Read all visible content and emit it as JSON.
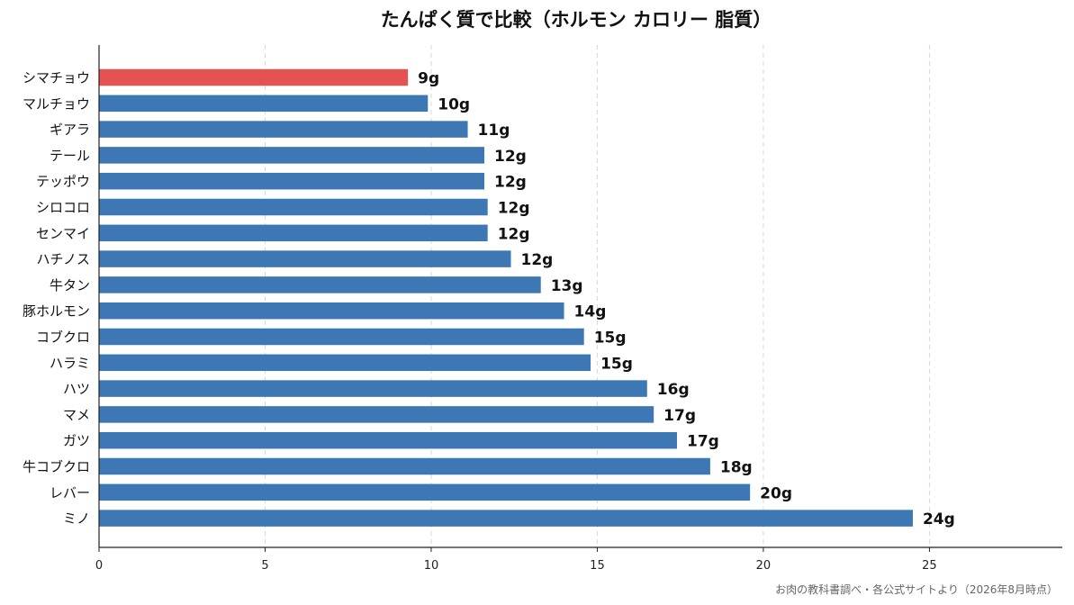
{
  "chart_data": {
    "type": "bar",
    "orientation": "horizontal",
    "title": "たんぱく質で比較（ホルモン カロリー 脂質）",
    "categories": [
      "シマチョウ",
      "マルチョウ",
      "ギアラ",
      "テール",
      "テッポウ",
      "シロコロ",
      "センマイ",
      "ハチノス",
      "牛タン",
      "豚ホルモン",
      "コブクロ",
      "ハラミ",
      "ハツ",
      "マメ",
      "ガツ",
      "牛コブクロ",
      "レバー",
      "ミノ"
    ],
    "values": [
      9.3,
      9.9,
      11.1,
      11.6,
      11.6,
      11.7,
      11.7,
      12.4,
      13.3,
      14.0,
      14.6,
      14.8,
      16.5,
      16.7,
      17.4,
      18.4,
      19.6,
      24.5
    ],
    "value_labels": [
      "9g",
      "10g",
      "11g",
      "12g",
      "12g",
      "12g",
      "12g",
      "12g",
      "13g",
      "14g",
      "15g",
      "15g",
      "16g",
      "17g",
      "17g",
      "18g",
      "20g",
      "24g"
    ],
    "highlight_index": 0,
    "colors": {
      "bar": "#3d78b5",
      "highlight": "#e65252",
      "grid": "#d8d8d8",
      "axis": "#222222"
    },
    "xlim": [
      0,
      29
    ],
    "xticks": [
      0,
      5,
      10,
      15,
      20,
      25
    ],
    "tick_labels": [
      "0",
      "5",
      "10",
      "15",
      "20",
      "25"
    ],
    "grid": "vertical dashed",
    "xlabel": "",
    "ylabel": ""
  },
  "source_note": "お肉の教科書調べ・各公式サイトより（2026年8月時点）"
}
